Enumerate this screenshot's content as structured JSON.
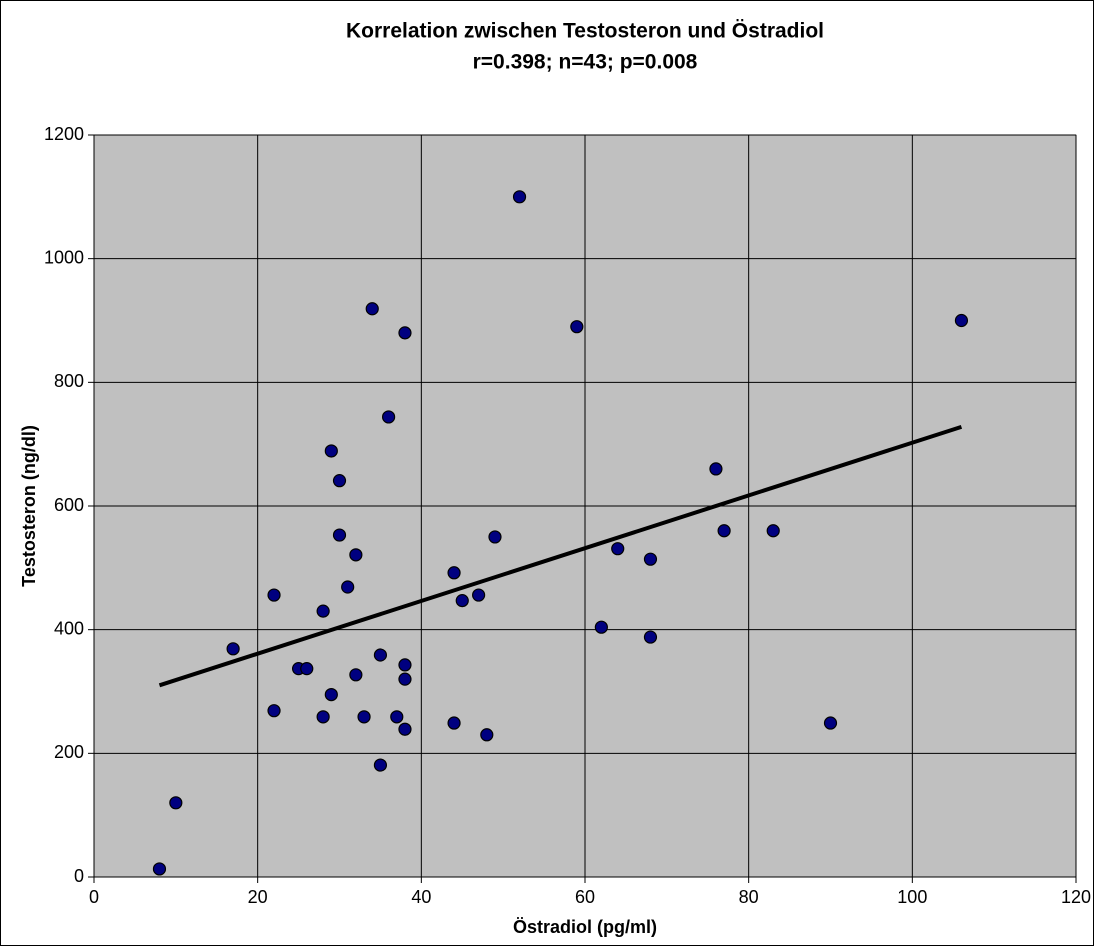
{
  "chart_data": {
    "type": "scatter",
    "title": "Korrelation zwischen Testosteron und Östradiol",
    "subtitle": "r=0.398; n=43; p=0.008",
    "x_label": "Östradiol (pg/ml)",
    "y_label": "Testosteron (ng/dl)",
    "x": [
      8,
      10,
      17,
      22,
      22,
      25,
      26,
      28,
      28,
      29,
      29,
      30,
      30,
      31,
      32,
      32,
      33,
      34,
      35,
      35,
      36,
      37,
      38,
      38,
      38,
      38,
      44,
      45,
      47,
      44,
      48,
      49,
      52,
      59,
      62,
      64,
      68,
      68,
      76,
      77,
      83,
      90,
      106
    ],
    "values": [
      13,
      120,
      369,
      456,
      269,
      337,
      337,
      430,
      259,
      689,
      295,
      641,
      553,
      469,
      521,
      327,
      259,
      919,
      359,
      181,
      744,
      259,
      343,
      320,
      239,
      880,
      492,
      447,
      456,
      249,
      230,
      550,
      1100,
      890,
      404,
      531,
      514,
      388,
      660,
      560,
      560,
      249,
      900
    ],
    "color": "#000080",
    "trendline": {
      "x": [
        8,
        106
      ],
      "y": [
        310,
        728
      ],
      "color": "#000000"
    },
    "xlim": [
      0,
      120
    ],
    "xticks": [
      0,
      20,
      40,
      60,
      80,
      100,
      120
    ],
    "ylim": [
      0,
      1200
    ],
    "yticks": [
      0,
      200,
      400,
      600,
      800,
      1000,
      1200
    ],
    "grid": true,
    "plot_background": "#c0c0c0"
  }
}
